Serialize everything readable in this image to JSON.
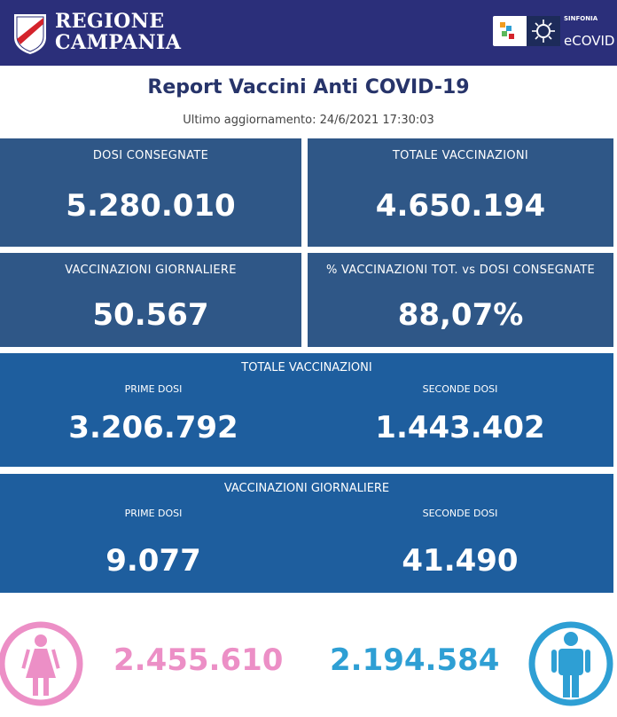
{
  "header": {
    "region_line1": "REGIONE",
    "region_line2": "CAMPANIA",
    "logo_small": "SINFONIA",
    "logo_main": "eCOVID",
    "colors": {
      "background": "#2b2f7a"
    }
  },
  "report": {
    "title": "Report Vaccini Anti COVID-19",
    "updated": "Ultimo aggiornamento: 24/6/2021  17:30:03"
  },
  "cards": {
    "dosi_consegnate": {
      "label": "DOSI  CONSEGNATE",
      "value": "5.280.010"
    },
    "totale_vaccinazioni": {
      "label": "TOTALE VACCINAZIONI",
      "value": "4.650.194"
    },
    "vaccinazioni_giornaliere": {
      "label": "VACCINAZIONI GIORNALIERE",
      "value": "50.567"
    },
    "percentuale": {
      "label": "% VACCINAZIONI TOT. vs DOSI CONSEGNATE",
      "value": "88,07%"
    }
  },
  "totale_panel": {
    "label": "TOTALE VACCINAZIONI",
    "prime_label": "PRIME DOSI",
    "prime_value": "3.206.792",
    "seconde_label": "SECONDE DOSI",
    "seconde_value": "1.443.402"
  },
  "giornaliere_panel": {
    "label": "VACCINAZIONI GIORNALIERE",
    "prime_label": "PRIME DOSI",
    "prime_value": "9.077",
    "seconde_label": "SECONDE DOSI",
    "seconde_value": "41.490"
  },
  "gender": {
    "female_value": "2.455.610",
    "male_value": "2.194.584",
    "female_icon": "female-icon",
    "male_icon": "male-icon",
    "colors": {
      "female": "#ec8fc6",
      "male": "#2e9fd4"
    }
  }
}
